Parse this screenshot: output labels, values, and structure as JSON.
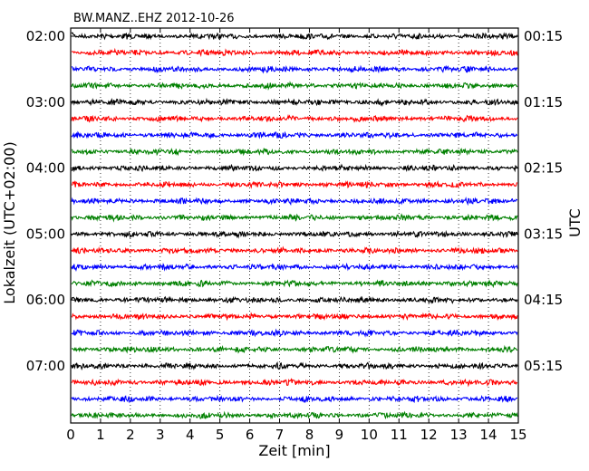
{
  "chart_data": {
    "type": "line",
    "title": "BW.MANZ..EHZ 2012-10-26",
    "xlabel": "Zeit  [min]",
    "ylabel_left": "Lokalzeit (UTC+02:00)",
    "ylabel_right": "UTC",
    "xlim": [
      0,
      15
    ],
    "x_ticks": [
      0,
      1,
      2,
      3,
      4,
      5,
      6,
      7,
      8,
      9,
      10,
      11,
      12,
      13,
      14,
      15
    ],
    "x_grid": "dotted-vertical",
    "traces_count": 24,
    "trace_interval_min": 15,
    "trace_colors": [
      "#000000",
      "#ff0000",
      "#0000ff",
      "#008000"
    ],
    "left_tick_labels": [
      "02:00",
      "03:00",
      "04:00",
      "05:00",
      "06:00",
      "07:00"
    ],
    "right_tick_labels": [
      "00:15",
      "01:15",
      "02:15",
      "03:15",
      "04:15",
      "05:15"
    ],
    "tick_every_n_traces": 4,
    "first_tick_trace_index": 0
  }
}
